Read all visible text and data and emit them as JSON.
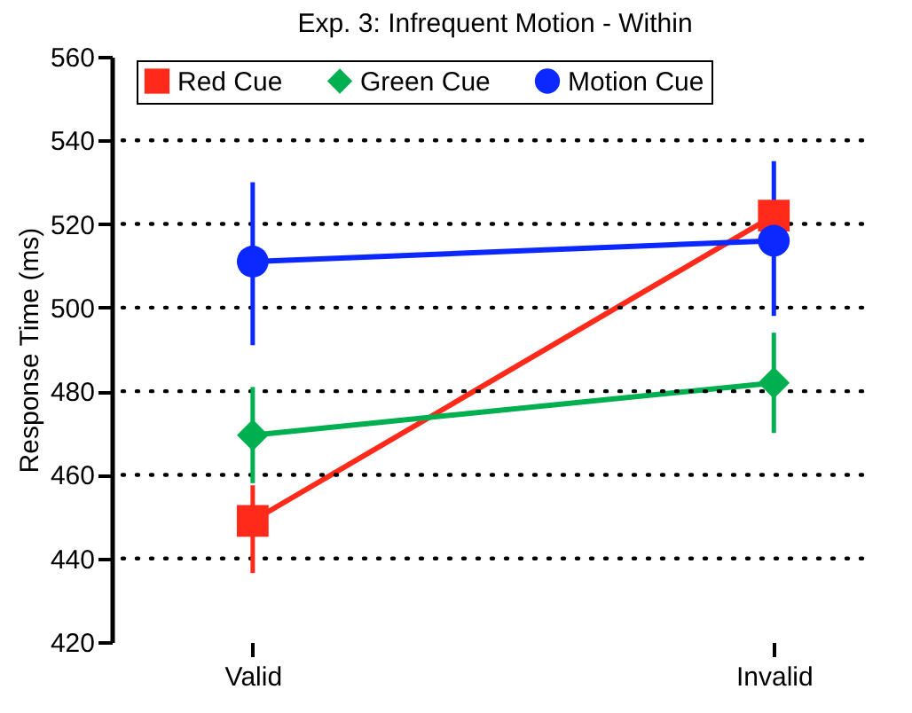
{
  "chart_data": {
    "type": "line",
    "title": "Exp. 3: Infrequent Motion - Within",
    "ylabel": "Response Time (ms)",
    "categories": [
      "Valid",
      "Invalid"
    ],
    "series": [
      {
        "name": "Red Cue",
        "color": "#ff2a1a",
        "marker": "square",
        "values": [
          449,
          522
        ],
        "errors": [
          [
            436.5,
            457.5
          ],
          null
        ]
      },
      {
        "name": "Green Cue",
        "color": "#00b050",
        "marker": "diamond",
        "values": [
          469.5,
          482
        ],
        "errors": [
          [
            458,
            481
          ],
          [
            470,
            494
          ]
        ]
      },
      {
        "name": "Motion Cue",
        "color": "#0a28ff",
        "marker": "circle",
        "values": [
          511,
          516
        ],
        "errors": [
          [
            491,
            530
          ],
          [
            498,
            535
          ]
        ]
      }
    ],
    "ylim": [
      420,
      560
    ],
    "yticks": [
      420,
      440,
      460,
      480,
      500,
      520,
      540,
      560
    ],
    "grid": "y",
    "legend": "top",
    "line_style": "solid"
  }
}
